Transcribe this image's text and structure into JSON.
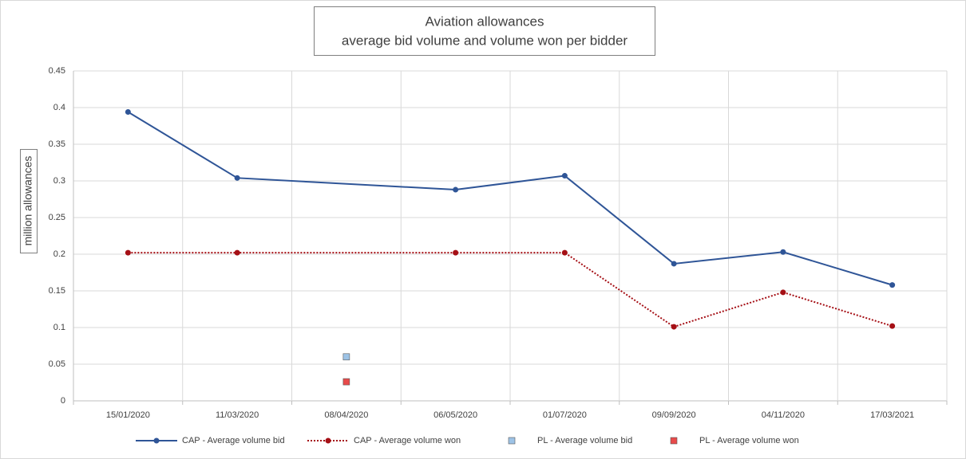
{
  "chart_data": {
    "type": "line",
    "title": [
      "Aviation allowances",
      "average bid volume and volume won per bidder"
    ],
    "y_label": "million allowances",
    "categories": [
      "15/01/2020",
      "11/03/2020",
      "08/04/2020",
      "06/05/2020",
      "01/07/2020",
      "09/09/2020",
      "04/11/2020",
      "17/03/2021"
    ],
    "series": [
      {
        "name": "CAP - Average volume bid",
        "color": "#2f5597",
        "style": "solid",
        "marker": "circle",
        "values": [
          0.394,
          0.304,
          null,
          0.288,
          0.307,
          0.187,
          0.203,
          0.158
        ]
      },
      {
        "name": "CAP - Average volume won",
        "color": "#a50f15",
        "style": "dotted",
        "marker": "circle",
        "values": [
          0.202,
          0.202,
          null,
          0.202,
          0.202,
          0.101,
          0.148,
          0.102
        ]
      },
      {
        "name": "PL - Average volume bid",
        "color": "#9dc3e6",
        "style": "none",
        "marker": "square",
        "values": [
          null,
          null,
          0.06,
          null,
          null,
          null,
          null,
          null
        ]
      },
      {
        "name": "PL - Average volume won",
        "color": "#e84a4a",
        "style": "none",
        "marker": "square",
        "values": [
          null,
          null,
          0.026,
          null,
          null,
          null,
          null,
          null
        ]
      }
    ],
    "span_gaps": true,
    "ylim": [
      0,
      0.45
    ],
    "yticks": [
      0,
      0.05,
      0.1,
      0.15,
      0.2,
      0.25,
      0.3,
      0.35,
      0.4,
      0.45
    ],
    "grid": true,
    "legend": "bottom"
  }
}
